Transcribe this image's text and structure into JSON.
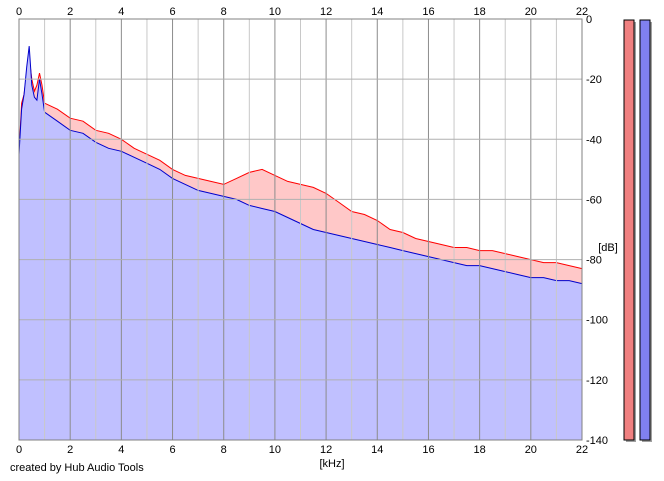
{
  "chart_data": {
    "type": "area",
    "xlabel": "[kHz]",
    "ylabel": "[dB]",
    "xlim": [
      0,
      22
    ],
    "ylim": [
      -140,
      0
    ],
    "xticks": [
      "0",
      "2",
      "4",
      "6",
      "8",
      "10",
      "12",
      "14",
      "16",
      "18",
      "20",
      "22"
    ],
    "yticks": [
      "0",
      "-20",
      "-40",
      "-60",
      "-80",
      "-100",
      "-120",
      "-140"
    ],
    "grid": true,
    "series": [
      {
        "color": "#ff0000",
        "fill": "#ffc8c8",
        "points": [
          [
            0,
            -45
          ],
          [
            0.1,
            -28
          ],
          [
            0.2,
            -25
          ],
          [
            0.3,
            -18
          ],
          [
            0.4,
            -13
          ],
          [
            0.5,
            -20
          ],
          [
            0.6,
            -24
          ],
          [
            0.7,
            -22
          ],
          [
            0.8,
            -18
          ],
          [
            0.9,
            -22
          ],
          [
            1,
            -28
          ],
          [
            1.5,
            -30
          ],
          [
            2,
            -33
          ],
          [
            2.5,
            -34
          ],
          [
            3,
            -37
          ],
          [
            3.5,
            -38
          ],
          [
            4,
            -40
          ],
          [
            4.5,
            -43
          ],
          [
            5,
            -45
          ],
          [
            5.5,
            -47
          ],
          [
            6,
            -50
          ],
          [
            6.5,
            -52
          ],
          [
            7,
            -53
          ],
          [
            7.5,
            -54
          ],
          [
            8,
            -55
          ],
          [
            8.5,
            -53
          ],
          [
            9,
            -51
          ],
          [
            9.5,
            -50
          ],
          [
            10,
            -52
          ],
          [
            10.5,
            -54
          ],
          [
            11,
            -55
          ],
          [
            11.5,
            -56
          ],
          [
            12,
            -58
          ],
          [
            12.5,
            -61
          ],
          [
            13,
            -64
          ],
          [
            13.5,
            -65
          ],
          [
            14,
            -67
          ],
          [
            14.5,
            -70
          ],
          [
            15,
            -71
          ],
          [
            15.5,
            -73
          ],
          [
            16,
            -74
          ],
          [
            16.5,
            -75
          ],
          [
            17,
            -76
          ],
          [
            17.5,
            -76
          ],
          [
            18,
            -77
          ],
          [
            18.5,
            -77
          ],
          [
            19,
            -78
          ],
          [
            19.5,
            -79
          ],
          [
            20,
            -80
          ],
          [
            20.5,
            -81
          ],
          [
            21,
            -81
          ],
          [
            21.5,
            -82
          ],
          [
            22,
            -83
          ]
        ]
      },
      {
        "color": "#0000cc",
        "fill": "#c0c0ff",
        "points": [
          [
            0,
            -45
          ],
          [
            0.1,
            -30
          ],
          [
            0.2,
            -25
          ],
          [
            0.3,
            -16
          ],
          [
            0.4,
            -9
          ],
          [
            0.5,
            -22
          ],
          [
            0.6,
            -26
          ],
          [
            0.7,
            -27
          ],
          [
            0.8,
            -20
          ],
          [
            0.9,
            -25
          ],
          [
            1,
            -31
          ],
          [
            1.5,
            -34
          ],
          [
            2,
            -37
          ],
          [
            2.5,
            -38
          ],
          [
            3,
            -41
          ],
          [
            3.5,
            -43
          ],
          [
            4,
            -44
          ],
          [
            4.5,
            -46
          ],
          [
            5,
            -48
          ],
          [
            5.5,
            -50
          ],
          [
            6,
            -53
          ],
          [
            6.5,
            -55
          ],
          [
            7,
            -57
          ],
          [
            7.5,
            -58
          ],
          [
            8,
            -59
          ],
          [
            8.5,
            -60
          ],
          [
            9,
            -62
          ],
          [
            9.5,
            -63
          ],
          [
            10,
            -64
          ],
          [
            10.5,
            -66
          ],
          [
            11,
            -68
          ],
          [
            11.5,
            -70
          ],
          [
            12,
            -71
          ],
          [
            12.5,
            -72
          ],
          [
            13,
            -73
          ],
          [
            13.5,
            -74
          ],
          [
            14,
            -75
          ],
          [
            14.5,
            -76
          ],
          [
            15,
            -77
          ],
          [
            15.5,
            -78
          ],
          [
            16,
            -79
          ],
          [
            16.5,
            -80
          ],
          [
            17,
            -81
          ],
          [
            17.5,
            -82
          ],
          [
            18,
            -82
          ],
          [
            18.5,
            -83
          ],
          [
            19,
            -84
          ],
          [
            19.5,
            -85
          ],
          [
            20,
            -86
          ],
          [
            20.5,
            -86
          ],
          [
            21,
            -87
          ],
          [
            21.5,
            -87
          ],
          [
            22,
            -88
          ]
        ]
      }
    ],
    "meters": [
      {
        "color": "#f08080",
        "level": 1.0
      },
      {
        "color": "#8080f0",
        "level": 1.0
      }
    ]
  },
  "footer": {
    "credit": "created by Hub Audio Tools"
  }
}
